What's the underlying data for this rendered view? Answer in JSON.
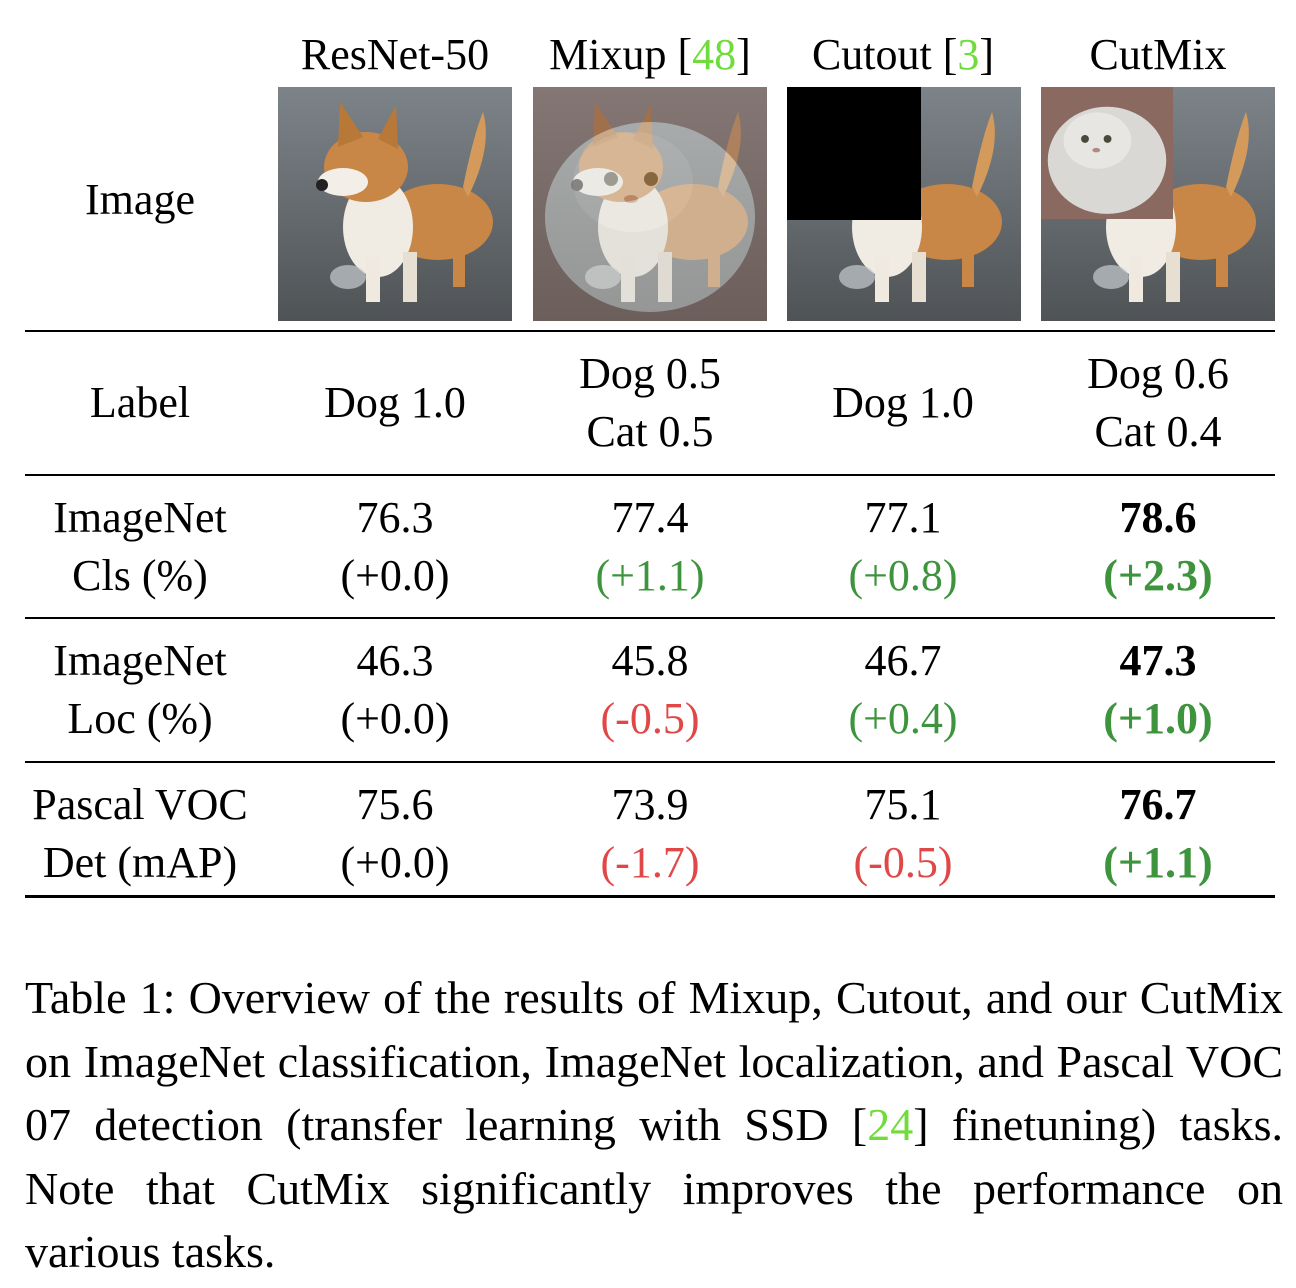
{
  "table": {
    "columns": [
      {
        "name": "ResNet-50",
        "cite": ""
      },
      {
        "name": "Mixup [",
        "cite": "48",
        "close": "]"
      },
      {
        "name": "Cutout [",
        "cite": "3",
        "close": "]"
      },
      {
        "name": "CutMix",
        "cite": ""
      }
    ],
    "image_row_label": "Image",
    "label_row": {
      "label": "Label",
      "cells": [
        [
          "Dog 1.0"
        ],
        [
          "Dog 0.5",
          "Cat 0.5"
        ],
        [
          "Dog 1.0"
        ],
        [
          "Dog 0.6",
          "Cat 0.4"
        ]
      ]
    },
    "rows": [
      {
        "label": [
          "ImageNet",
          "Cls (%)"
        ],
        "cells": [
          {
            "value": "76.3",
            "delta": "(+0.0)",
            "tone": "neutral"
          },
          {
            "value": "77.4",
            "delta": "(+1.1)",
            "tone": "pos"
          },
          {
            "value": "77.1",
            "delta": "(+0.8)",
            "tone": "pos"
          },
          {
            "value": "78.6",
            "delta": "(+2.3)",
            "tone": "pos",
            "bold": true
          }
        ]
      },
      {
        "label": [
          "ImageNet",
          "Loc (%)"
        ],
        "cells": [
          {
            "value": "46.3",
            "delta": "(+0.0)",
            "tone": "neutral"
          },
          {
            "value": "45.8",
            "delta": "(-0.5)",
            "tone": "neg"
          },
          {
            "value": "46.7",
            "delta": "(+0.4)",
            "tone": "pos"
          },
          {
            "value": "47.3",
            "delta": "(+1.0)",
            "tone": "pos",
            "bold": true
          }
        ]
      },
      {
        "label": [
          "Pascal VOC",
          "Det (mAP)"
        ],
        "cells": [
          {
            "value": "75.6",
            "delta": "(+0.0)",
            "tone": "neutral"
          },
          {
            "value": "73.9",
            "delta": "(-1.7)",
            "tone": "neg"
          },
          {
            "value": "75.1",
            "delta": "(-0.5)",
            "tone": "neg"
          },
          {
            "value": "76.7",
            "delta": "(+1.1)",
            "tone": "pos",
            "bold": true
          }
        ]
      }
    ]
  },
  "caption": {
    "before": "Table 1: Overview of the results of Mixup, Cutout, and our CutMix on ImageNet classification, ImageNet localization, and Pascal VOC 07 detection (transfer learning with SSD [",
    "cite": "24",
    "after": "] finetuning) tasks. Note that CutMix significantly improves the performance on various tasks."
  },
  "colors": {
    "positive": "#3d943d",
    "negative": "#e04848",
    "citation": "#6fdc3c"
  }
}
